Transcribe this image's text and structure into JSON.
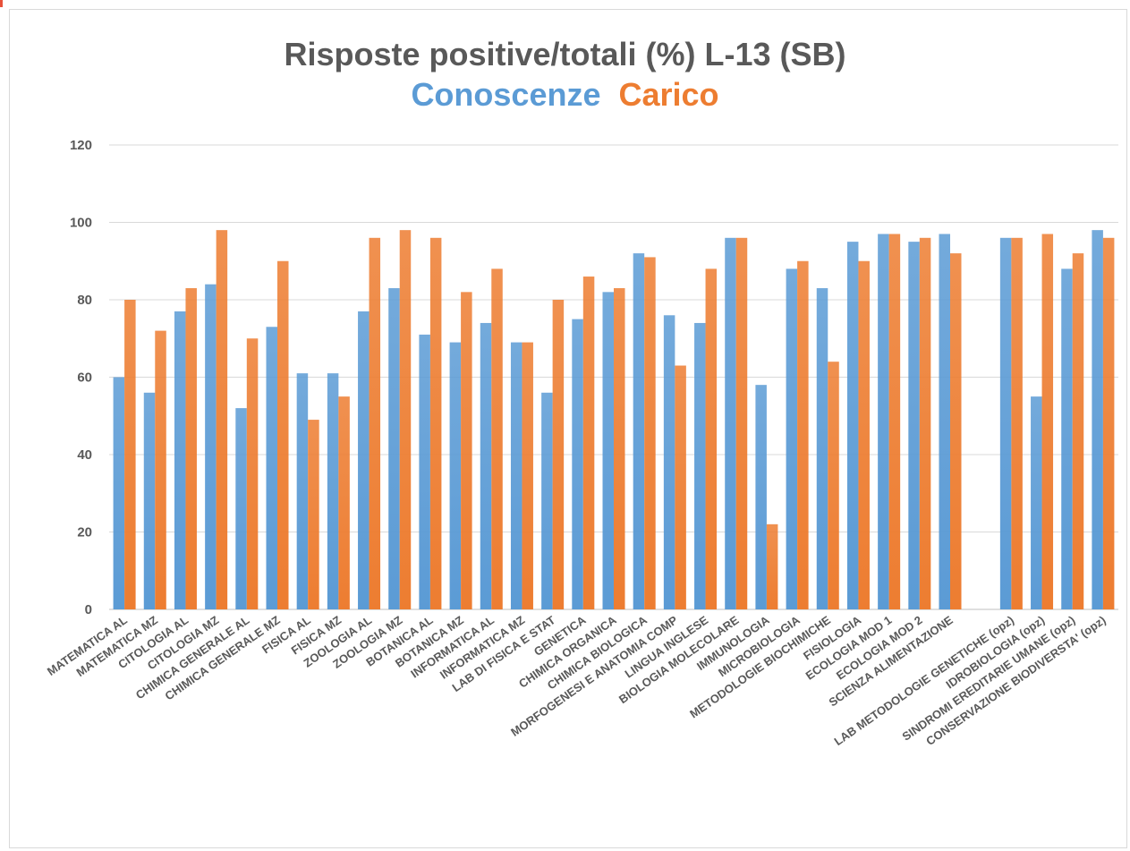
{
  "chart_data": {
    "type": "bar",
    "title": "Risposte positive/totali (%) L-13 (SB)",
    "series": [
      {
        "name": "Conoscenze",
        "color": "#5b9bd5",
        "values": [
          60,
          56,
          77,
          84,
          52,
          73,
          61,
          61,
          77,
          83,
          71,
          69,
          74,
          69,
          56,
          75,
          82,
          92,
          76,
          74,
          96,
          58,
          88,
          83,
          95,
          97,
          95,
          97,
          null,
          96,
          55,
          88,
          98
        ]
      },
      {
        "name": "Carico",
        "color": "#ed7d31",
        "values": [
          80,
          72,
          83,
          98,
          70,
          90,
          49,
          55,
          96,
          98,
          96,
          82,
          88,
          69,
          80,
          86,
          83,
          91,
          63,
          88,
          96,
          22,
          90,
          64,
          90,
          97,
          96,
          92,
          null,
          96,
          97,
          92,
          96
        ]
      }
    ],
    "categories": [
      "MATEMATICA AL",
      "MATEMATICA MZ",
      "CITOLOGIA AL",
      "CITOLOGIA MZ",
      "CHIMICA GENERALE AL",
      "CHIMICA GENERALE MZ",
      "FISICA AL",
      "FISICA MZ",
      "ZOOLOGIA AL",
      "ZOOLOGIA MZ",
      "BOTANICA AL",
      "BOTANICA MZ",
      "INFORMATICA AL",
      "INFORMATICA MZ",
      "LAB DI FISICA E STAT",
      "GENETICA",
      "CHIMICA ORGANICA",
      "CHIMICA BIOLOGICA",
      "MORFOGENESI E ANATOMIA COMP",
      "LINGUA INGLESE",
      "BIOLOGIA MOLECOLARE",
      "IMMUNOLOGIA",
      "MICROBIOLOGIA",
      "METODOLOGIE BIOCHIMICHE",
      "FISIOLOGIA",
      "ECOLOGIA MOD 1",
      "ECOLOGIA MOD 2",
      "SCIENZA ALIMENTAZIONE",
      "",
      "LAB METODOLOGIE GENETICHE (opz)",
      "IDROBIOLOGIA  (opz)",
      "SINDROMI EREDITARIE UMANE (opz)",
      "CONSERVAZIONE BIODIVERSTA' (opz)"
    ],
    "yticks": [
      "0",
      "20",
      "40",
      "60",
      "80",
      "100",
      "120"
    ],
    "ylim": [
      0,
      120
    ],
    "grid": true,
    "gridColor": "#d9d9d9",
    "textColor": "#595959"
  }
}
